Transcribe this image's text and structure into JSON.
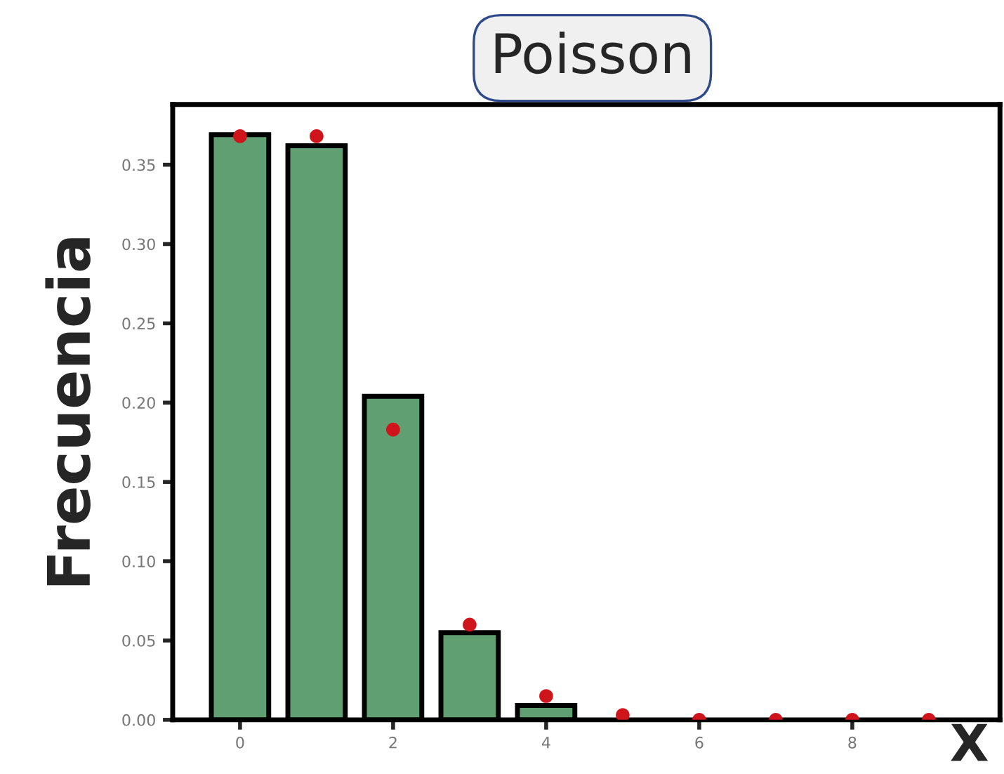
{
  "chart_data": {
    "type": "bar",
    "title": "Poisson",
    "xlabel": "X",
    "ylabel": "Frecuencia",
    "series": [
      {
        "color": "#5f9f72",
        "x": [
          0,
          1,
          2,
          3,
          4
        ],
        "values": [
          0.369,
          0.362,
          0.204,
          0.055,
          0.009
        ]
      },
      {
        "type": "scatter",
        "color": "#d0141c",
        "x": [
          0,
          1,
          2,
          3,
          4,
          5,
          6,
          7,
          8,
          9
        ],
        "values": [
          0.368,
          0.368,
          0.183,
          0.06,
          0.015,
          0.003,
          0.0,
          0.0,
          0.0,
          0.0
        ]
      }
    ],
    "marker": "circle",
    "xlim": [
      -0.88,
      9.93
    ],
    "xticks": [
      0,
      2,
      4,
      6,
      8
    ],
    "ylim": [
      0,
      0.388
    ],
    "yticks": [
      {
        "value": 0,
        "label": "0.00"
      },
      {
        "value": 0.05,
        "label": "0.05"
      },
      {
        "value": 0.1,
        "label": "0.10"
      },
      {
        "value": 0.15,
        "label": "0.15"
      },
      {
        "value": 0.2,
        "label": "0.20"
      },
      {
        "value": 0.25,
        "label": "0.25"
      },
      {
        "value": 0.3,
        "label": "0.30"
      },
      {
        "value": 0.35,
        "label": "0.35"
      }
    ],
    "grid": false,
    "legend": false
  }
}
